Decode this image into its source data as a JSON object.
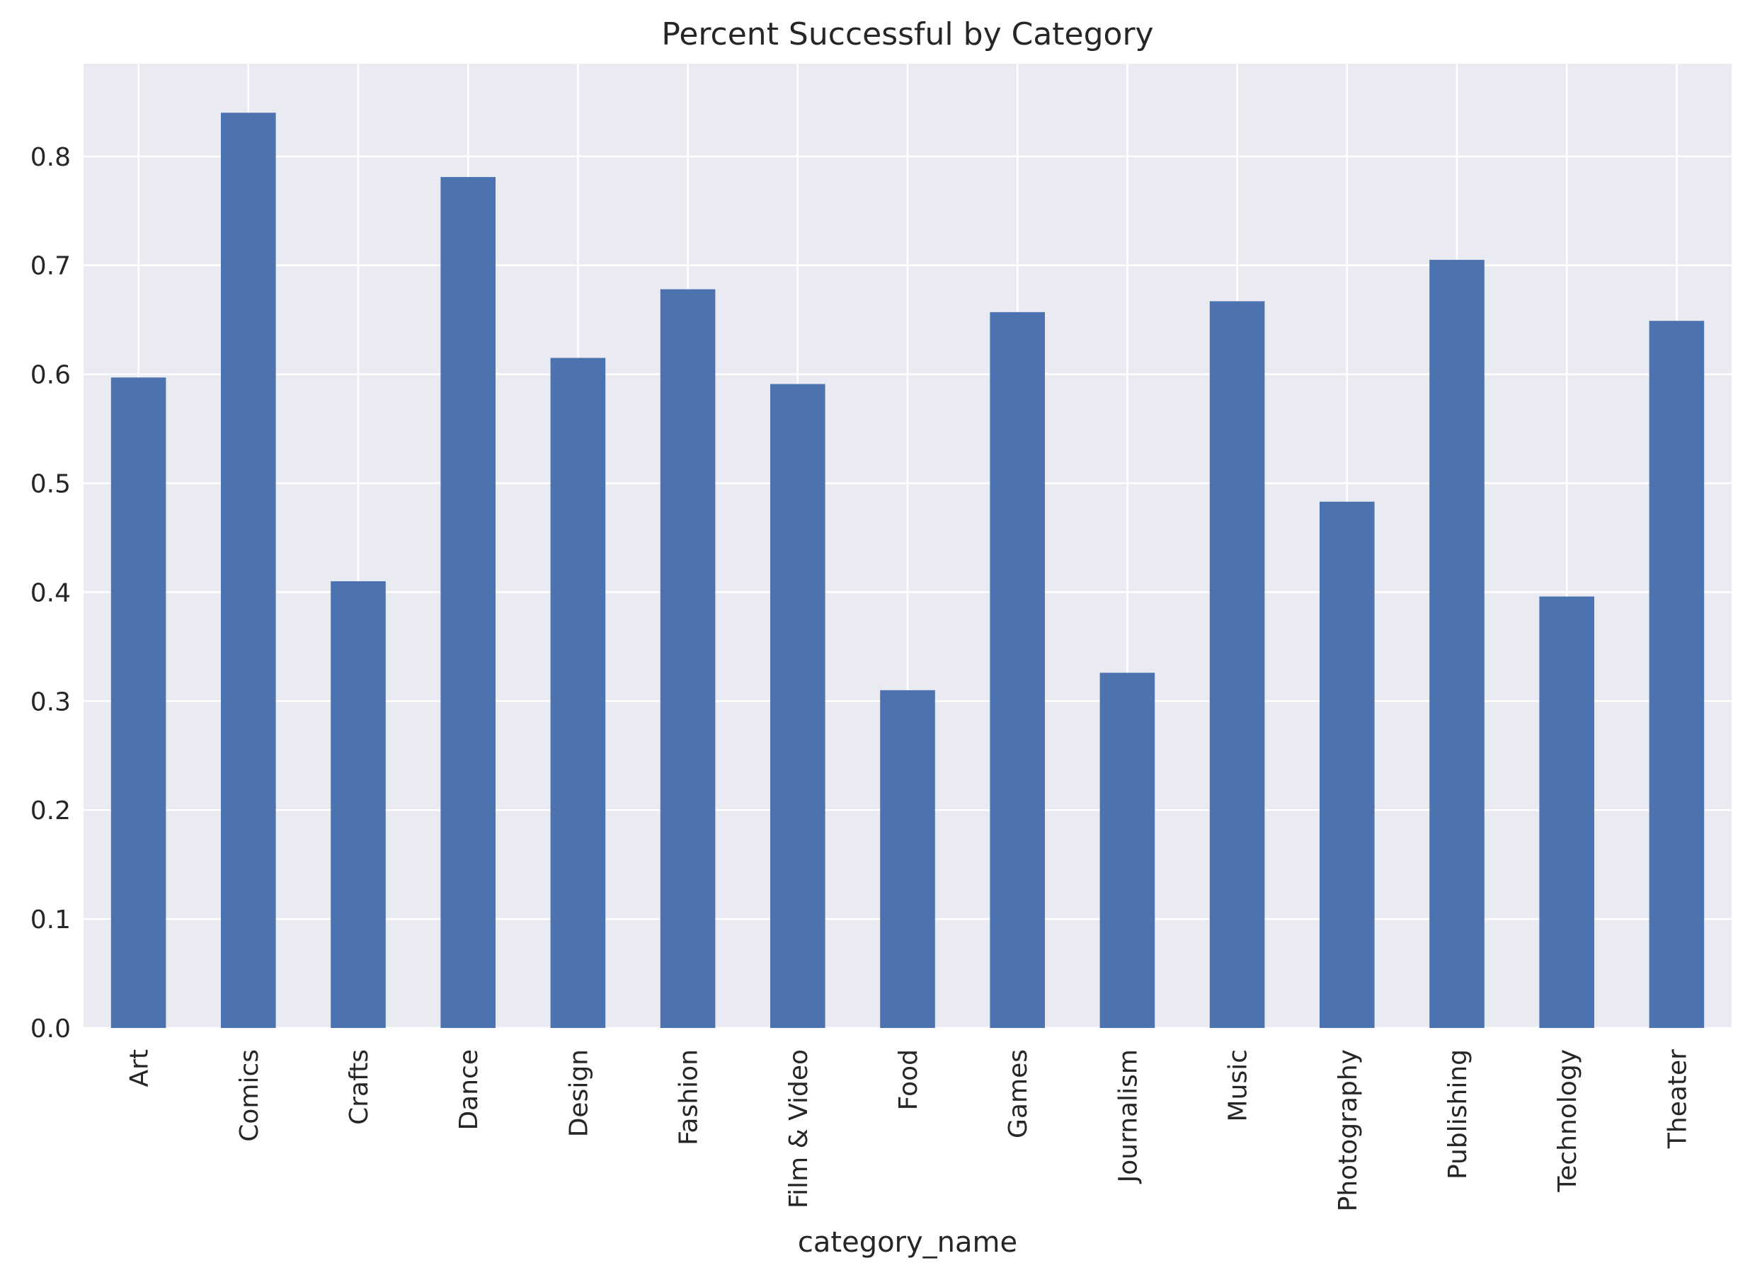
{
  "chart_data": {
    "type": "bar",
    "title": "Percent Successful by Category",
    "xlabel": "category_name",
    "ylabel": "",
    "categories": [
      "Art",
      "Comics",
      "Crafts",
      "Dance",
      "Design",
      "Fashion",
      "Film & Video",
      "Food",
      "Games",
      "Journalism",
      "Music",
      "Photography",
      "Publishing",
      "Technology",
      "Theater"
    ],
    "values": [
      0.597,
      0.84,
      0.41,
      0.781,
      0.615,
      0.678,
      0.591,
      0.31,
      0.657,
      0.326,
      0.667,
      0.483,
      0.705,
      0.396,
      0.649
    ],
    "ylim": [
      0,
      0.885
    ],
    "yticks": [
      "0.0",
      "0.1",
      "0.2",
      "0.3",
      "0.4",
      "0.5",
      "0.6",
      "0.7",
      "0.8"
    ],
    "grid": true,
    "legend": "none",
    "colors": {
      "bar": "#4c72b0",
      "plot_background": "#eaeaf2",
      "grid": "#ffffff",
      "text": "#262626"
    }
  }
}
